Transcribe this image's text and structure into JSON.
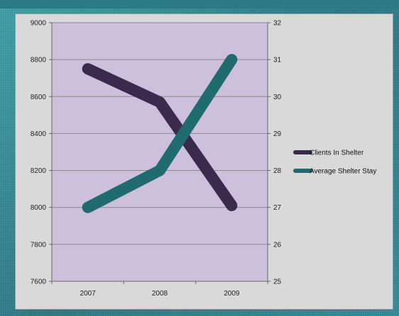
{
  "chart_data": {
    "type": "line",
    "categories": [
      "2007",
      "2008",
      "2009"
    ],
    "series": [
      {
        "name": "Clients In Shelter",
        "axis": "left",
        "values": [
          8750,
          8570,
          8010
        ],
        "color": "#3b2a4e"
      },
      {
        "name": "Average Shelter Stay",
        "axis": "right",
        "values": [
          27,
          28,
          31
        ],
        "color": "#1f6b6f"
      }
    ],
    "y_left": {
      "min": 7600,
      "max": 9000,
      "ticks": [
        "7600",
        "7800",
        "8000",
        "8200",
        "8400",
        "8600",
        "8800",
        "9000"
      ]
    },
    "y_right": {
      "min": 25,
      "max": 32,
      "ticks": [
        "25",
        "26",
        "27",
        "28",
        "29",
        "30",
        "31",
        "32"
      ]
    },
    "title": "",
    "grid": true,
    "legend_position": "right",
    "plot_background": "#ccc0dc"
  }
}
